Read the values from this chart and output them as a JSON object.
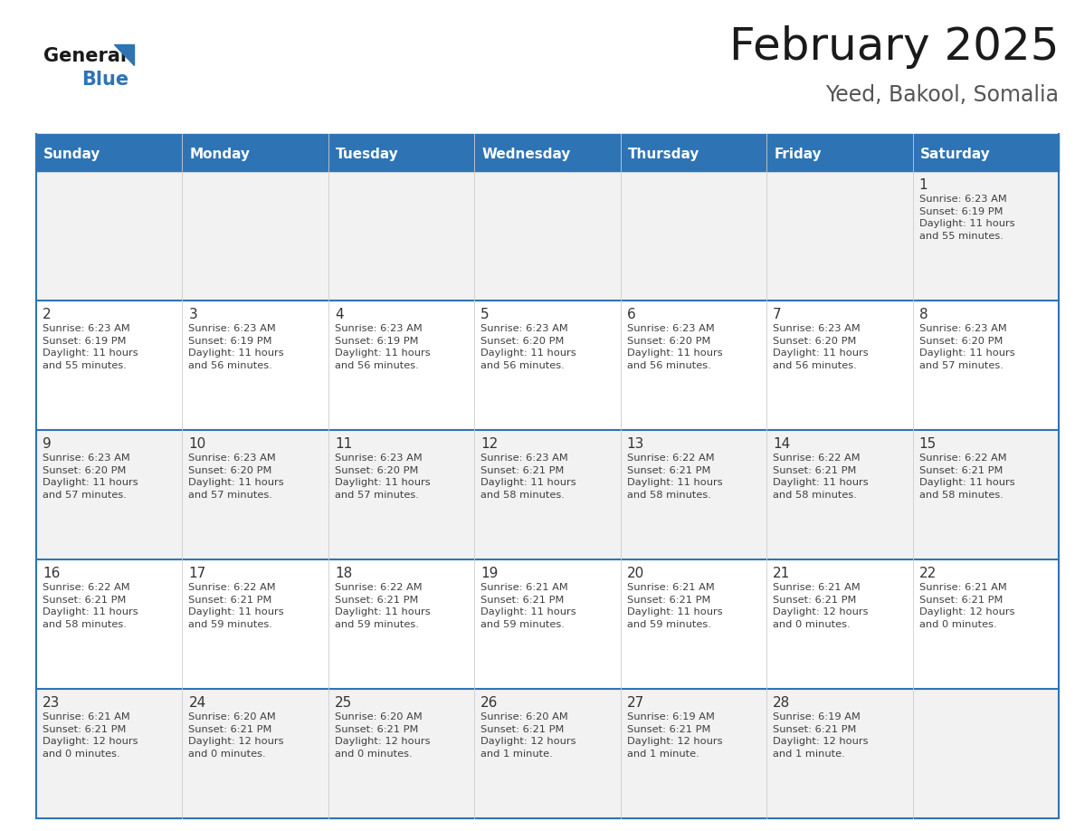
{
  "title": "February 2025",
  "subtitle": "Yeed, Bakool, Somalia",
  "days_of_week": [
    "Sunday",
    "Monday",
    "Tuesday",
    "Wednesday",
    "Thursday",
    "Friday",
    "Saturday"
  ],
  "header_bg": "#2E74B5",
  "header_text_color": "#FFFFFF",
  "cell_bg_odd": "#F2F2F2",
  "cell_bg_even": "#FFFFFF",
  "divider_color": "#2E74B5",
  "grid_line_color": "#2E74B5",
  "text_color": "#404040",
  "day_number_color": "#333333",
  "logo_general_color": "#1a1a1a",
  "logo_blue_color": "#2E74B5",
  "title_color": "#1a1a1a",
  "subtitle_color": "#555555",
  "fig_width": 11.88,
  "fig_height": 9.18,
  "dpi": 100,
  "weeks": [
    [
      {
        "day": null,
        "info": null
      },
      {
        "day": null,
        "info": null
      },
      {
        "day": null,
        "info": null
      },
      {
        "day": null,
        "info": null
      },
      {
        "day": null,
        "info": null
      },
      {
        "day": null,
        "info": null
      },
      {
        "day": 1,
        "info": "Sunrise: 6:23 AM\nSunset: 6:19 PM\nDaylight: 11 hours\nand 55 minutes."
      }
    ],
    [
      {
        "day": 2,
        "info": "Sunrise: 6:23 AM\nSunset: 6:19 PM\nDaylight: 11 hours\nand 55 minutes."
      },
      {
        "day": 3,
        "info": "Sunrise: 6:23 AM\nSunset: 6:19 PM\nDaylight: 11 hours\nand 56 minutes."
      },
      {
        "day": 4,
        "info": "Sunrise: 6:23 AM\nSunset: 6:19 PM\nDaylight: 11 hours\nand 56 minutes."
      },
      {
        "day": 5,
        "info": "Sunrise: 6:23 AM\nSunset: 6:20 PM\nDaylight: 11 hours\nand 56 minutes."
      },
      {
        "day": 6,
        "info": "Sunrise: 6:23 AM\nSunset: 6:20 PM\nDaylight: 11 hours\nand 56 minutes."
      },
      {
        "day": 7,
        "info": "Sunrise: 6:23 AM\nSunset: 6:20 PM\nDaylight: 11 hours\nand 56 minutes."
      },
      {
        "day": 8,
        "info": "Sunrise: 6:23 AM\nSunset: 6:20 PM\nDaylight: 11 hours\nand 57 minutes."
      }
    ],
    [
      {
        "day": 9,
        "info": "Sunrise: 6:23 AM\nSunset: 6:20 PM\nDaylight: 11 hours\nand 57 minutes."
      },
      {
        "day": 10,
        "info": "Sunrise: 6:23 AM\nSunset: 6:20 PM\nDaylight: 11 hours\nand 57 minutes."
      },
      {
        "day": 11,
        "info": "Sunrise: 6:23 AM\nSunset: 6:20 PM\nDaylight: 11 hours\nand 57 minutes."
      },
      {
        "day": 12,
        "info": "Sunrise: 6:23 AM\nSunset: 6:21 PM\nDaylight: 11 hours\nand 58 minutes."
      },
      {
        "day": 13,
        "info": "Sunrise: 6:22 AM\nSunset: 6:21 PM\nDaylight: 11 hours\nand 58 minutes."
      },
      {
        "day": 14,
        "info": "Sunrise: 6:22 AM\nSunset: 6:21 PM\nDaylight: 11 hours\nand 58 minutes."
      },
      {
        "day": 15,
        "info": "Sunrise: 6:22 AM\nSunset: 6:21 PM\nDaylight: 11 hours\nand 58 minutes."
      }
    ],
    [
      {
        "day": 16,
        "info": "Sunrise: 6:22 AM\nSunset: 6:21 PM\nDaylight: 11 hours\nand 58 minutes."
      },
      {
        "day": 17,
        "info": "Sunrise: 6:22 AM\nSunset: 6:21 PM\nDaylight: 11 hours\nand 59 minutes."
      },
      {
        "day": 18,
        "info": "Sunrise: 6:22 AM\nSunset: 6:21 PM\nDaylight: 11 hours\nand 59 minutes."
      },
      {
        "day": 19,
        "info": "Sunrise: 6:21 AM\nSunset: 6:21 PM\nDaylight: 11 hours\nand 59 minutes."
      },
      {
        "day": 20,
        "info": "Sunrise: 6:21 AM\nSunset: 6:21 PM\nDaylight: 11 hours\nand 59 minutes."
      },
      {
        "day": 21,
        "info": "Sunrise: 6:21 AM\nSunset: 6:21 PM\nDaylight: 12 hours\nand 0 minutes."
      },
      {
        "day": 22,
        "info": "Sunrise: 6:21 AM\nSunset: 6:21 PM\nDaylight: 12 hours\nand 0 minutes."
      }
    ],
    [
      {
        "day": 23,
        "info": "Sunrise: 6:21 AM\nSunset: 6:21 PM\nDaylight: 12 hours\nand 0 minutes."
      },
      {
        "day": 24,
        "info": "Sunrise: 6:20 AM\nSunset: 6:21 PM\nDaylight: 12 hours\nand 0 minutes."
      },
      {
        "day": 25,
        "info": "Sunrise: 6:20 AM\nSunset: 6:21 PM\nDaylight: 12 hours\nand 0 minutes."
      },
      {
        "day": 26,
        "info": "Sunrise: 6:20 AM\nSunset: 6:21 PM\nDaylight: 12 hours\nand 1 minute."
      },
      {
        "day": 27,
        "info": "Sunrise: 6:19 AM\nSunset: 6:21 PM\nDaylight: 12 hours\nand 1 minute."
      },
      {
        "day": 28,
        "info": "Sunrise: 6:19 AM\nSunset: 6:21 PM\nDaylight: 12 hours\nand 1 minute."
      },
      {
        "day": null,
        "info": null
      }
    ]
  ]
}
